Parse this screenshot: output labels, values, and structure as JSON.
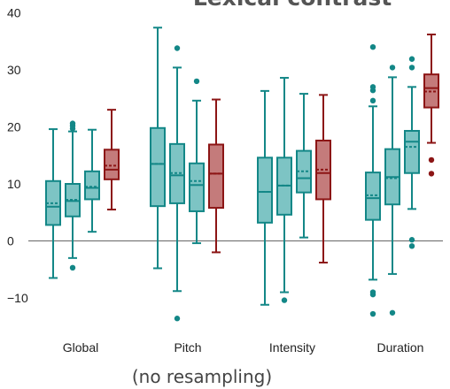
{
  "chart_data": {
    "type": "box",
    "title": "Lexical contrast",
    "caption": "(no resampling)",
    "xlabel": "",
    "ylabel": "",
    "ylim": [
      -17,
      40
    ],
    "yticks": [
      40,
      30,
      20,
      10,
      0,
      -10
    ],
    "ytick_labels": [
      "40",
      "30",
      "20",
      "10",
      "0",
      "−10"
    ],
    "categories": [
      "Global",
      "Pitch",
      "Intensity",
      "Duration"
    ],
    "grid": false,
    "zero_line": true,
    "colors": {
      "teal_fill": "#7dc4c4",
      "teal_edge": "#138787",
      "red_fill": "#c47b7b",
      "red_edge": "#8c1515"
    },
    "groups": [
      {
        "category": "Global",
        "boxes": [
          {
            "color": "teal",
            "whisker_low": -6.5,
            "q1": 2.8,
            "median": 6.0,
            "mean": 6.6,
            "q3": 10.5,
            "whisker_high": 19.6,
            "outliers": []
          },
          {
            "color": "teal",
            "whisker_low": -3.0,
            "q1": 4.3,
            "median": 7.0,
            "mean": 7.2,
            "q3": 10.0,
            "whisker_high": 19.2,
            "outliers": [
              -4.7,
              19.7,
              20.2,
              20.6
            ]
          },
          {
            "color": "teal",
            "whisker_low": 1.6,
            "q1": 7.3,
            "median": 9.3,
            "mean": 9.5,
            "q3": 12.2,
            "whisker_high": 19.5,
            "outliers": []
          },
          {
            "color": "red",
            "whisker_low": 5.5,
            "q1": 10.8,
            "median": 12.5,
            "mean": 13.2,
            "q3": 16.0,
            "whisker_high": 23.0,
            "outliers": []
          }
        ]
      },
      {
        "category": "Pitch",
        "boxes": [
          {
            "color": "teal",
            "whisker_low": -4.8,
            "q1": 6.1,
            "median": 13.5,
            "mean": 13.5,
            "q3": 19.8,
            "whisker_high": 37.4,
            "outliers": []
          },
          {
            "color": "teal",
            "whisker_low": -8.8,
            "q1": 6.6,
            "median": 11.5,
            "mean": 11.9,
            "q3": 17.0,
            "whisker_high": 30.4,
            "outliers": [
              -13.6,
              33.8
            ]
          },
          {
            "color": "teal",
            "whisker_low": -0.4,
            "q1": 5.2,
            "median": 9.8,
            "mean": 10.5,
            "q3": 13.6,
            "whisker_high": 24.6,
            "outliers": [
              28.0
            ]
          },
          {
            "color": "red",
            "whisker_low": -2.0,
            "q1": 5.8,
            "median": 11.8,
            "mean": 11.8,
            "q3": 16.9,
            "whisker_high": 24.8,
            "outliers": []
          }
        ]
      },
      {
        "category": "Intensity",
        "boxes": [
          {
            "color": "teal",
            "whisker_low": -11.2,
            "q1": 3.2,
            "median": 8.6,
            "mean": 8.6,
            "q3": 14.6,
            "whisker_high": 26.3,
            "outliers": []
          },
          {
            "color": "teal",
            "whisker_low": -9.0,
            "q1": 4.6,
            "median": 9.7,
            "mean": 9.7,
            "q3": 14.6,
            "whisker_high": 28.6,
            "outliers": [
              -10.4
            ]
          },
          {
            "color": "teal",
            "whisker_low": 0.6,
            "q1": 8.5,
            "median": 11.0,
            "mean": 12.2,
            "q3": 15.8,
            "whisker_high": 25.8,
            "outliers": []
          },
          {
            "color": "red",
            "whisker_low": -3.8,
            "q1": 7.3,
            "median": 11.9,
            "mean": 12.5,
            "q3": 17.6,
            "whisker_high": 25.6,
            "outliers": []
          }
        ]
      },
      {
        "category": "Duration",
        "boxes": [
          {
            "color": "teal",
            "whisker_low": -6.8,
            "q1": 3.7,
            "median": 7.5,
            "mean": 8.0,
            "q3": 12.0,
            "whisker_high": 23.6,
            "outliers": [
              -9.0,
              -9.4,
              -12.8,
              24.6,
              26.4,
              27.0,
              34.0
            ]
          },
          {
            "color": "teal",
            "whisker_low": -5.8,
            "q1": 6.4,
            "median": 11.2,
            "mean": 11.0,
            "q3": 16.1,
            "whisker_high": 28.7,
            "outliers": [
              -12.6,
              30.4
            ]
          },
          {
            "color": "teal",
            "whisker_low": 5.6,
            "q1": 11.9,
            "median": 17.4,
            "mean": 16.5,
            "q3": 19.3,
            "whisker_high": 27.0,
            "outliers": [
              -0.9,
              0.2,
              30.4,
              31.9
            ]
          },
          {
            "color": "red",
            "whisker_low": 17.2,
            "q1": 23.4,
            "median": 26.8,
            "mean": 26.2,
            "q3": 29.2,
            "whisker_high": 36.2,
            "outliers": [
              11.8,
              14.2
            ]
          }
        ]
      }
    ]
  }
}
